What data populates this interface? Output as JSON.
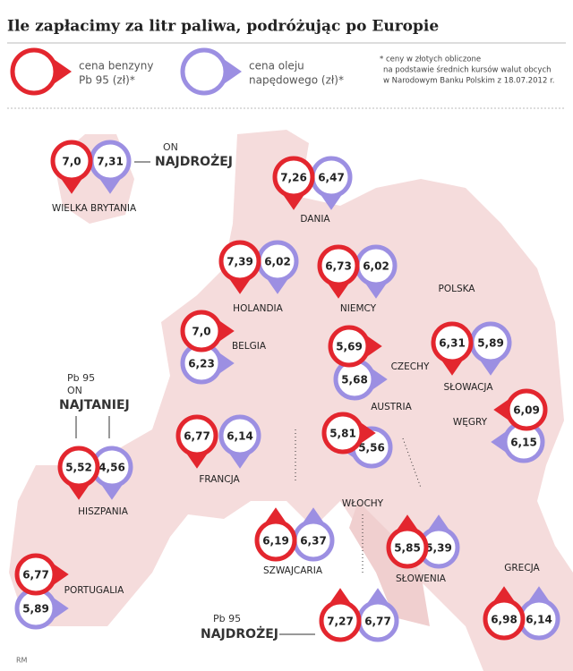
{
  "title": "Ile zapłacimy za litr paliwa, podróżując po Europie",
  "legend": {
    "petrol": [
      "cena benzyny",
      "Pb 95 (zł)*"
    ],
    "diesel": [
      "cena oleju",
      "napędowego (zł)*"
    ],
    "footnote": [
      "* ceny w złotych obliczone",
      "na podstawie średnich kursów walut obcych",
      "w Narodowym Banku Polskim z 18.07.2012 r."
    ]
  },
  "countries": [
    {
      "name": "WIELKA BRYTANIA",
      "petrol": "7,0",
      "diesel": "7,31"
    },
    {
      "name": "DANIA",
      "petrol": "7,26",
      "diesel": "6,47"
    },
    {
      "name": "HOLANDIA",
      "petrol": "7,39",
      "diesel": "6,02"
    },
    {
      "name": "NIEMCY",
      "petrol": "6,73",
      "diesel": "6,02"
    },
    {
      "name": "BELGIA",
      "petrol": "7,0",
      "diesel": "6,23"
    },
    {
      "name": "CZECHY",
      "petrol": "5,69",
      "diesel": "5,68"
    },
    {
      "name": "SŁOWACJA",
      "petrol": "6,31",
      "diesel": "5,89"
    },
    {
      "name": "WĘGRY",
      "petrol": "6,09",
      "diesel": "6,15"
    },
    {
      "name": "AUSTRIA",
      "petrol": "5,81",
      "diesel": "5,56"
    },
    {
      "name": "FRANCJA",
      "petrol": "6,77",
      "diesel": "6,14"
    },
    {
      "name": "HISZPANIA",
      "petrol": "5,52",
      "diesel": "4,56"
    },
    {
      "name": "SZWAJCARIA",
      "petrol": "6,19",
      "diesel": "6,37"
    },
    {
      "name": "SŁOWENIA",
      "petrol": "5,85",
      "diesel": "5,39"
    },
    {
      "name": "WŁOCHY",
      "petrol": "7,27",
      "diesel": "6,77"
    },
    {
      "name": "PORTUGALIA",
      "petrol": "6,77",
      "diesel": "5,89"
    },
    {
      "name": "GRECJA",
      "petrol": "6,98",
      "diesel": "6,14"
    }
  ],
  "map_labels": [
    "POLSKA"
  ],
  "annotations": {
    "most_expensive_diesel": [
      "ON",
      "NAJDROŻEJ"
    ],
    "cheapest": [
      "Pb 95",
      "ON",
      "NAJTANIEJ"
    ],
    "most_expensive_petrol": [
      "Pb 95",
      "NAJDROŻEJ"
    ]
  },
  "credit": "RM"
}
